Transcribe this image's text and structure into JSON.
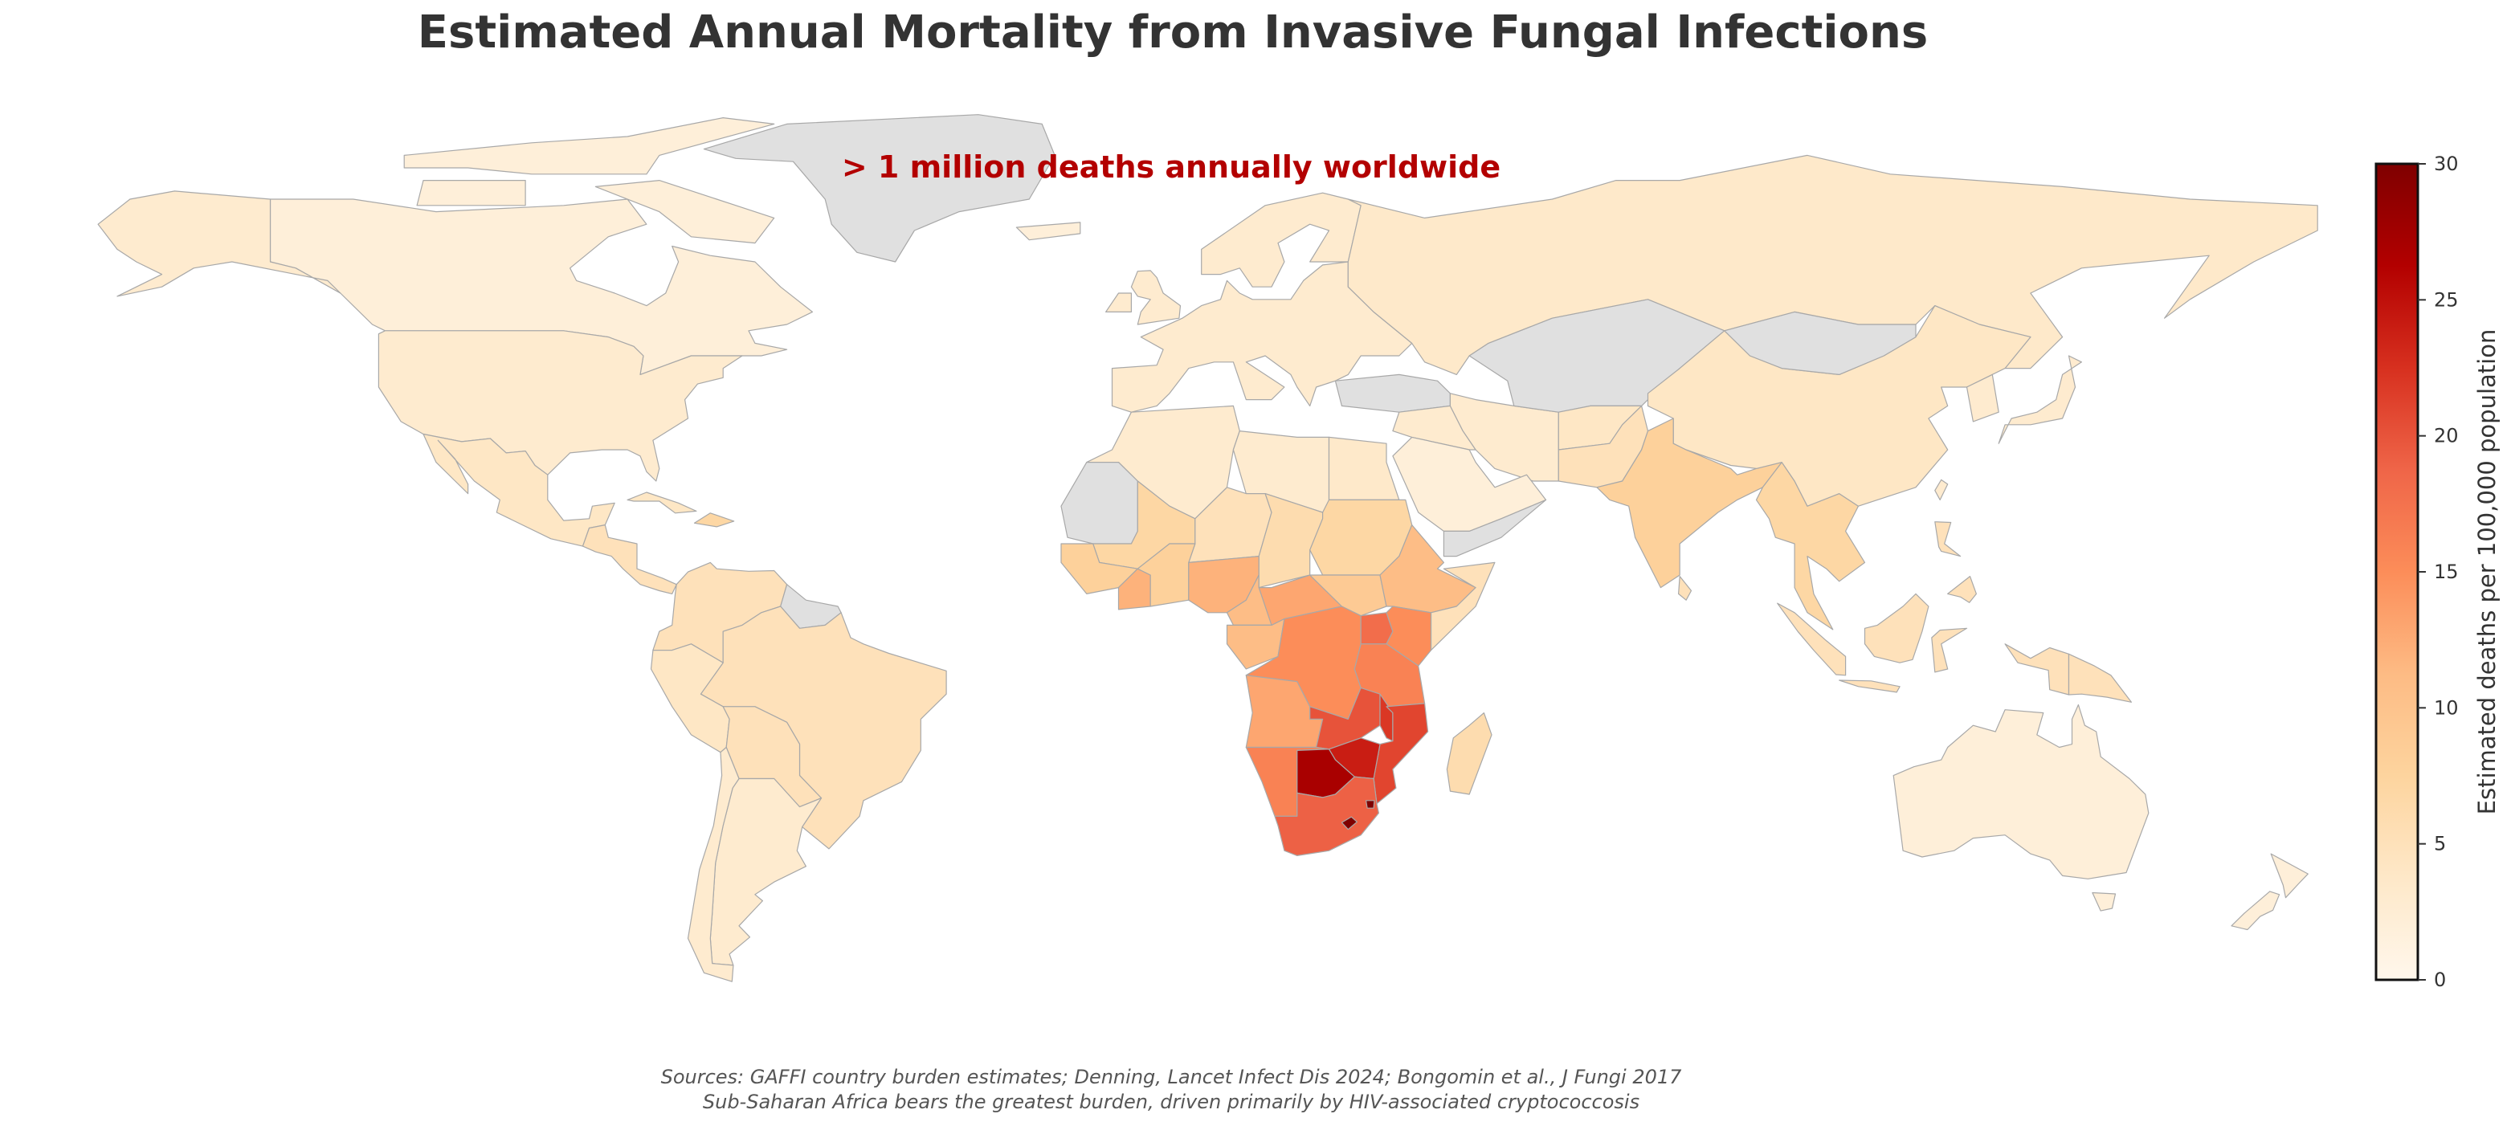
{
  "title": "Estimated Annual Mortality from Invasive Fungal Infections",
  "annotation": "> 1 million deaths annually worldwide",
  "footer": {
    "line1": "Sources: GAFFI country burden estimates; Denning, Lancet Infect Dis 2024; Bongomin et al., J Fungi 2017",
    "line2": "Sub-Saharan Africa bears the greatest burden, driven primarily by HIV-associated cryptococcosis"
  },
  "colorbar": {
    "label": "Estimated deaths per 100,000 population",
    "min": 0,
    "max": 30,
    "ticks": [
      "0",
      "5",
      "10",
      "15",
      "20",
      "25",
      "30"
    ],
    "colormap": [
      "#fff7ec",
      "#fee8c8",
      "#fdd49e",
      "#fdbb84",
      "#fc8d59",
      "#ef6548",
      "#d7301f",
      "#b30000",
      "#7f0000"
    ],
    "no_data_color": "#e0e0e0",
    "border_color": "#a8a8a8"
  },
  "chart_data": {
    "type": "choropleth",
    "title": "Estimated Annual Mortality from Invasive Fungal Infections",
    "value_label": "Estimated deaths per 100,000 population",
    "range": [
      0,
      30
    ],
    "regions": [
      {
        "name": "Canada",
        "value": 2
      },
      {
        "name": "Arctic Canada",
        "value": 2
      },
      {
        "name": "Alaska",
        "value": 3
      },
      {
        "name": "United States",
        "value": 3
      },
      {
        "name": "Mexico",
        "value": 4
      },
      {
        "name": "Central America",
        "value": 5
      },
      {
        "name": "Cuba",
        "value": 4
      },
      {
        "name": "Hispaniola",
        "value": 7
      },
      {
        "name": "Greenland",
        "value": null
      },
      {
        "name": "Colombia/Venezuela/Ecuador",
        "value": 5
      },
      {
        "name": "Guianas",
        "value": null
      },
      {
        "name": "Brazil",
        "value": 5
      },
      {
        "name": "Peru",
        "value": 4
      },
      {
        "name": "Bolivia/Paraguay",
        "value": 5
      },
      {
        "name": "Argentina",
        "value": 3
      },
      {
        "name": "Chile",
        "value": 3
      },
      {
        "name": "Iceland",
        "value": 2
      },
      {
        "name": "United Kingdom",
        "value": 3
      },
      {
        "name": "Ireland",
        "value": 3
      },
      {
        "name": "Scandinavia",
        "value": 3
      },
      {
        "name": "Europe",
        "value": 3
      },
      {
        "name": "Russia",
        "value": 3.5
      },
      {
        "name": "Turkey",
        "value": null
      },
      {
        "name": "Iraq/Syria/Jordan",
        "value": 3
      },
      {
        "name": "Iran",
        "value": 3
      },
      {
        "name": "Arabian Peninsula",
        "value": 2
      },
      {
        "name": "Yemen/Oman",
        "value": null
      },
      {
        "name": "Central Asia",
        "value": null
      },
      {
        "name": "Afghanistan",
        "value": 4
      },
      {
        "name": "Pakistan",
        "value": 5
      },
      {
        "name": "India",
        "value": 8
      },
      {
        "name": "Southeast Asia",
        "value": 7
      },
      {
        "name": "China",
        "value": 4
      },
      {
        "name": "Mongolia",
        "value": null
      },
      {
        "name": "Korea",
        "value": 3
      },
      {
        "name": "Japan",
        "value": 3
      },
      {
        "name": "Taiwan",
        "value": 3
      },
      {
        "name": "Sri Lanka",
        "value": 5
      },
      {
        "name": "Indonesia",
        "value": 5
      },
      {
        "name": "Philippines",
        "value": 5
      },
      {
        "name": "Papua New Guinea",
        "value": 5
      },
      {
        "name": "Australia",
        "value": 2
      },
      {
        "name": "New Zealand",
        "value": 2
      },
      {
        "name": "Maghreb",
        "value": 3
      },
      {
        "name": "Libya",
        "value": 3
      },
      {
        "name": "Egypt",
        "value": 3.5
      },
      {
        "name": "Western Sahara/Mauritania",
        "value": null
      },
      {
        "name": "Mali",
        "value": 7
      },
      {
        "name": "Niger",
        "value": 5
      },
      {
        "name": "Chad",
        "value": 6
      },
      {
        "name": "Sudan",
        "value": 7
      },
      {
        "name": "Senegal-Guinea coast",
        "value": 8
      },
      {
        "name": "Cote d'Ivoire",
        "value": 12
      },
      {
        "name": "Ghana/Burkina/Togo/Benin",
        "value": 8
      },
      {
        "name": "Nigeria",
        "value": 12
      },
      {
        "name": "Cameroon",
        "value": 11
      },
      {
        "name": "Central African Republic",
        "value": 13
      },
      {
        "name": "South Sudan",
        "value": 9
      },
      {
        "name": "Ethiopia",
        "value": 11
      },
      {
        "name": "Somalia",
        "value": 5
      },
      {
        "name": "Gabon/Congo",
        "value": 11
      },
      {
        "name": "DR Congo",
        "value": 15
      },
      {
        "name": "Uganda",
        "value": 18
      },
      {
        "name": "Kenya",
        "value": 15
      },
      {
        "name": "Tanzania",
        "value": 16
      },
      {
        "name": "Angola",
        "value": 13
      },
      {
        "name": "Zambia",
        "value": 20
      },
      {
        "name": "Malawi",
        "value": 22
      },
      {
        "name": "Mozambique",
        "value": 21
      },
      {
        "name": "Zimbabwe",
        "value": 24
      },
      {
        "name": "Namibia",
        "value": 16
      },
      {
        "name": "Botswana",
        "value": 27
      },
      {
        "name": "South Africa",
        "value": 19
      },
      {
        "name": "Lesotho",
        "value": 30
      },
      {
        "name": "Eswatini",
        "value": 30
      },
      {
        "name": "Madagascar",
        "value": 6
      }
    ]
  }
}
